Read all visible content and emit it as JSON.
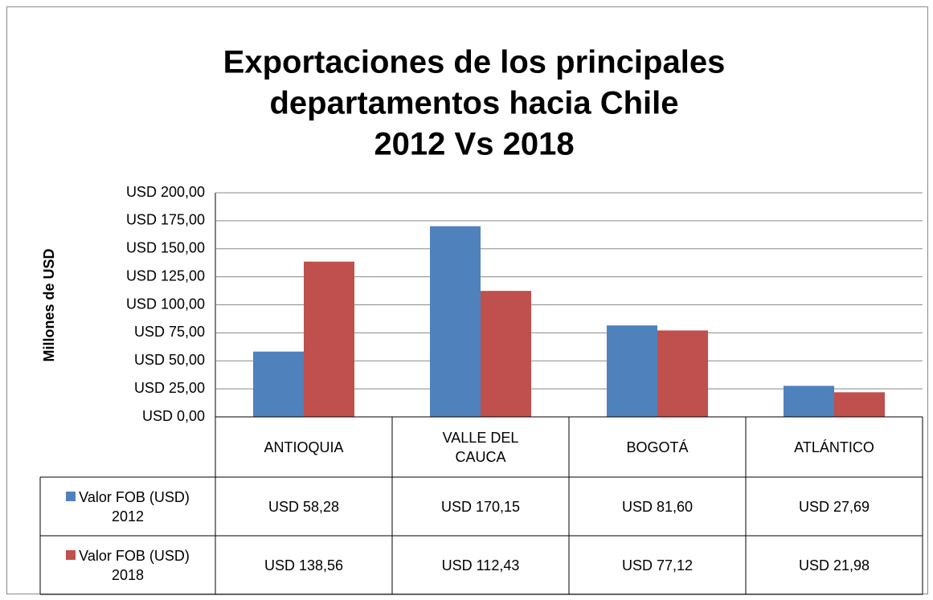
{
  "chart_data": {
    "type": "bar",
    "title": [
      "Exportaciones de los principales",
      "departamentos hacia Chile",
      "2012 Vs 2018"
    ],
    "y_axis_label": "Millones de USD",
    "categories": [
      "ANTIOQUIA",
      "VALLE DEL CAUCA",
      "BOGOTÁ",
      "ATLÁNTICO"
    ],
    "series": [
      {
        "name": "Valor FOB (USD) 2012",
        "color": "#4f81bd",
        "values": [
          58.28,
          170.15,
          81.6,
          27.69
        ],
        "value_labels": [
          "USD 58,28",
          "USD 170,15",
          "USD 81,60",
          "USD 27,69"
        ]
      },
      {
        "name": "Valor FOB (USD) 2018",
        "color": "#c0504d",
        "values": [
          138.56,
          112.43,
          77.12,
          21.98
        ],
        "value_labels": [
          "USD 138,56",
          "USD 112,43",
          "USD 77,12",
          "USD 21,98"
        ]
      }
    ],
    "ylim": [
      0,
      200
    ],
    "yticks": [
      {
        "value": 0,
        "label": "USD 0,00"
      },
      {
        "value": 25,
        "label": "USD 25,00"
      },
      {
        "value": 50,
        "label": "USD 50,00"
      },
      {
        "value": 75,
        "label": "USD 75,00"
      },
      {
        "value": 100,
        "label": "USD 100,00"
      },
      {
        "value": 125,
        "label": "USD 125,00"
      },
      {
        "value": 150,
        "label": "USD 150,00"
      },
      {
        "value": 175,
        "label": "USD 175,00"
      },
      {
        "value": 200,
        "label": "USD 200,00"
      }
    ],
    "grid": true
  }
}
